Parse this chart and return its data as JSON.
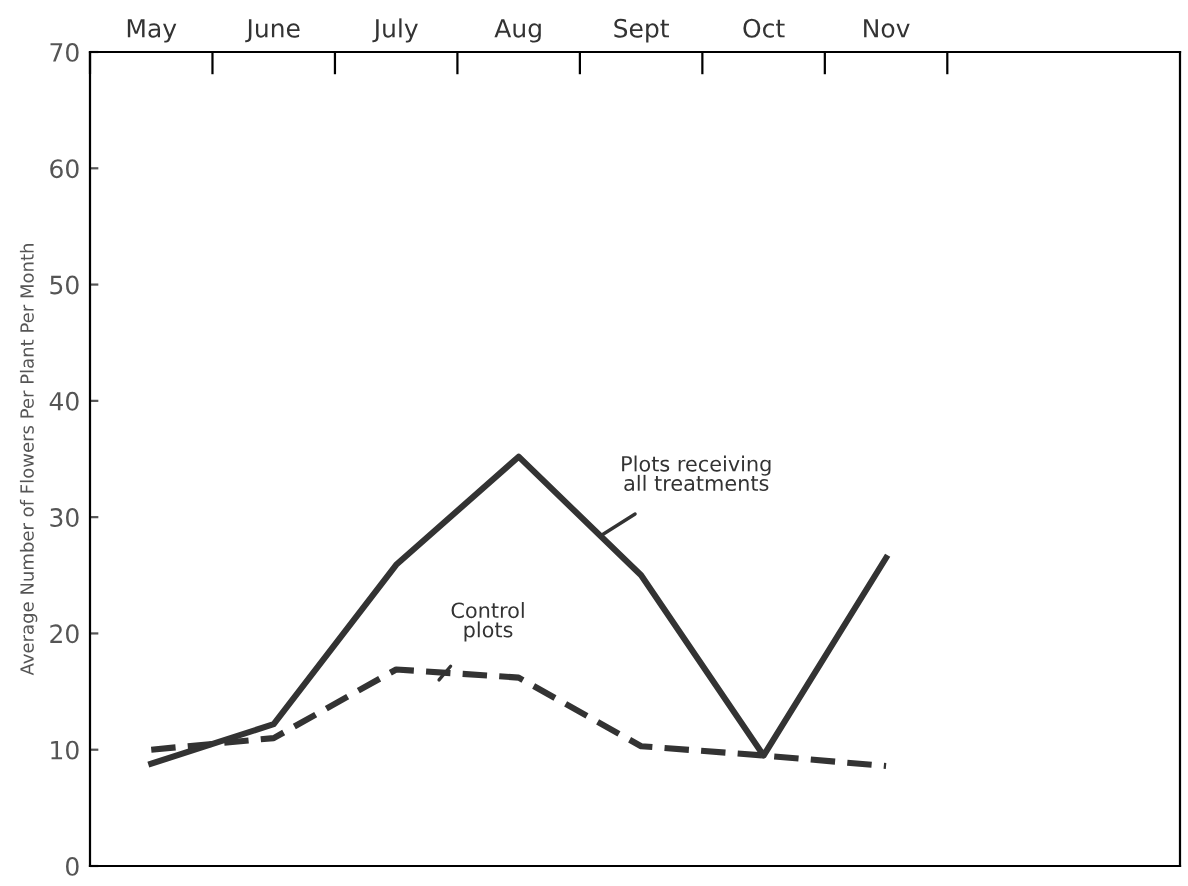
{
  "chart_data": {
    "type": "line",
    "ylabel": "Average Number of Flowers Per Plant Per Month",
    "categories": [
      "May",
      "June",
      "July",
      "Aug",
      "Sept",
      "Oct",
      "Nov"
    ],
    "series": [
      {
        "color": "#333333",
        "line_style": "solid",
        "values": [
          8.8,
          12.2,
          25.9,
          35.2,
          25.0,
          9.5,
          26.5
        ]
      },
      {
        "color": "#333333",
        "line_style": "dashed",
        "values": [
          10.0,
          11.0,
          16.9,
          16.2,
          10.3,
          9.5,
          8.6
        ]
      }
    ],
    "annotations": [
      "Plots receiving\nall treatments",
      "Control\nplots"
    ],
    "ylim": [
      0,
      70
    ],
    "yticks": [
      0,
      10,
      20,
      30,
      40,
      50,
      60,
      70
    ],
    "grid": false,
    "legend": false,
    "marker": "none"
  }
}
